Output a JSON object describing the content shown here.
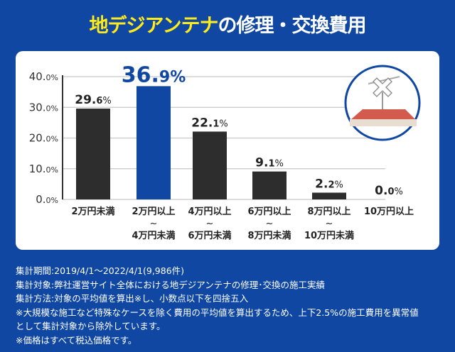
{
  "title": {
    "highlight": "地デジアンテナ",
    "rest": "の修理・交換費用"
  },
  "chart_data": {
    "type": "bar",
    "categories": [
      [
        "2万円未満"
      ],
      [
        "2万円以上",
        "4万円未満"
      ],
      [
        "4万円以上",
        "6万円未満"
      ],
      [
        "6万円以上",
        "8万円未満"
      ],
      [
        "8万円以上",
        "10万円未満"
      ],
      [
        "10万円以上"
      ]
    ],
    "values": [
      29.6,
      36.9,
      22.1,
      9.1,
      2.2,
      0.0
    ],
    "data_labels": [
      [
        "29.",
        "6",
        "%"
      ],
      [
        "36.",
        "9",
        "%"
      ],
      [
        "22.",
        "1",
        "%"
      ],
      [
        "9.",
        "1",
        "%"
      ],
      [
        "2.",
        "2",
        "%"
      ],
      [
        "0.",
        "0",
        "%"
      ]
    ],
    "highlight_index": 1,
    "ylim": [
      0,
      40
    ],
    "yticks": [
      [
        "0.",
        "0%"
      ],
      [
        "10.",
        "0%"
      ],
      [
        "20.",
        "0%"
      ],
      [
        "30.",
        "0%"
      ],
      [
        "40.",
        "0%"
      ]
    ],
    "ytick_values": [
      0,
      10,
      20,
      30,
      40
    ],
    "range_mark": "~",
    "grid": true,
    "colors": {
      "bar": "#2d2d2d",
      "highlight": "#0f47a3",
      "grid": "#c8c8c8"
    }
  },
  "illustration": "antenna-on-roof-with-x-icon",
  "notes": [
    "集計期間:2019/4/1～2022/4/1(9,986件)",
    "集計対象:弊社運営サイト全体における地デジアンテナの修理･交換の施工実績",
    "集計方法:対象の平均値を算出※し、小数点以下を四捨五入",
    "※大規模な施工など特殊なケースを除く費用の平均値を算出するため、上下2.5%の施工費用を異常値",
    "として集計対象から除外しています。",
    "※価格はすべて税込価格です。"
  ]
}
